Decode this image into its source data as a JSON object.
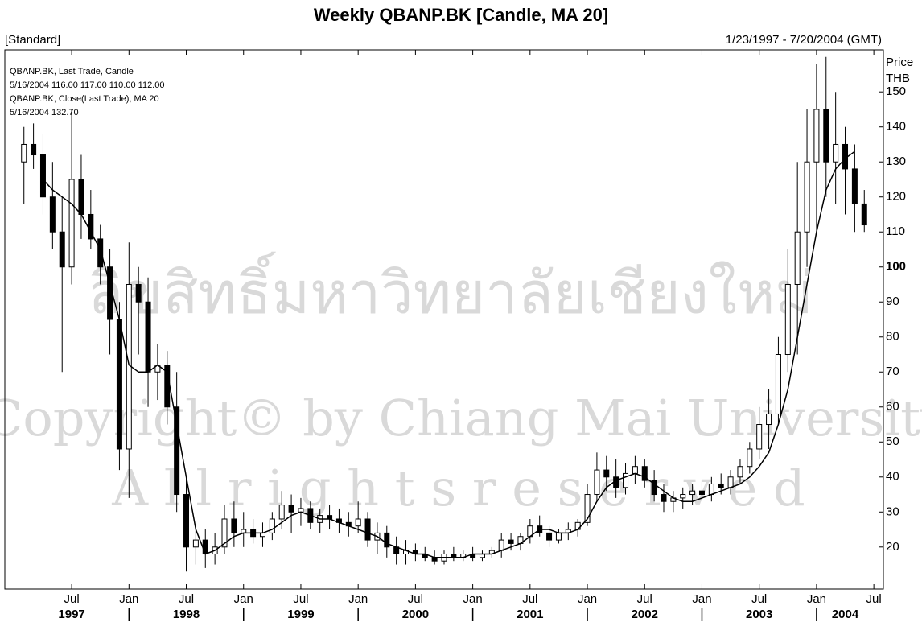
{
  "chart_data": {
    "type": "candlestick",
    "title": "Weekly QBANP.BK [Candle, MA 20]",
    "subtitle_left": "[Standard]",
    "subtitle_right": "1/23/1997 - 7/20/2004 (GMT)",
    "y_axis_label": [
      "Price",
      "THB"
    ],
    "legend_lines": [
      "QBANP.BK, Last Trade, Candle",
      "5/16/2004 116.00 117.00 110.00 112.00",
      "QBANP.BK, Close(Last Trade), MA 20",
      "5/16/2004 132.70"
    ],
    "watermark": [
      "ลิขสิทธิ์มหาวิทยาลัยเชียงใหม่",
      "Copyright© by Chiang Mai University",
      "A l l   r i g h t s   r e s e r v e d"
    ],
    "xlim": [
      "1996-12",
      "2004-08"
    ],
    "ylim": [
      8,
      162
    ],
    "yticks": [
      20,
      30,
      40,
      50,
      60,
      70,
      80,
      90,
      100,
      110,
      120,
      130,
      140,
      150
    ],
    "xticks": [
      {
        "value": "1997-07",
        "label": "Jul"
      },
      {
        "value": "1998-01",
        "label": "Jan"
      },
      {
        "value": "1998-07",
        "label": "Jul"
      },
      {
        "value": "1999-01",
        "label": "Jan"
      },
      {
        "value": "1999-07",
        "label": "Jul"
      },
      {
        "value": "2000-01",
        "label": "Jan"
      },
      {
        "value": "2000-07",
        "label": "Jul"
      },
      {
        "value": "2001-01",
        "label": "Jan"
      },
      {
        "value": "2001-07",
        "label": "Jul"
      },
      {
        "value": "2002-01",
        "label": "Jan"
      },
      {
        "value": "2002-07",
        "label": "Jul"
      },
      {
        "value": "2003-01",
        "label": "Jan"
      },
      {
        "value": "2003-07",
        "label": "Jul"
      },
      {
        "value": "2004-01",
        "label": "Jan"
      },
      {
        "value": "2004-07",
        "label": "Jul"
      }
    ],
    "year_labels": [
      {
        "value": "1997-07",
        "label": "1997"
      },
      {
        "value": "1998-07",
        "label": "1998"
      },
      {
        "value": "1999-07",
        "label": "1999"
      },
      {
        "value": "2000-07",
        "label": "2000"
      },
      {
        "value": "2001-07",
        "label": "2001"
      },
      {
        "value": "2002-07",
        "label": "2002"
      },
      {
        "value": "2003-07",
        "label": "2003"
      },
      {
        "value": "2004-04",
        "label": "2004"
      }
    ],
    "x": [
      "1997-02",
      "1997-03",
      "1997-04",
      "1997-05",
      "1997-06",
      "1997-07",
      "1997-08",
      "1997-09",
      "1997-10",
      "1997-11",
      "1997-12",
      "1998-01",
      "1998-02",
      "1998-03",
      "1998-04",
      "1998-05",
      "1998-06",
      "1998-07",
      "1998-08",
      "1998-09",
      "1998-10",
      "1998-11",
      "1998-12",
      "1999-01",
      "1999-02",
      "1999-03",
      "1999-04",
      "1999-05",
      "1999-06",
      "1999-07",
      "1999-08",
      "1999-09",
      "1999-10",
      "1999-11",
      "1999-12",
      "2000-01",
      "2000-02",
      "2000-03",
      "2000-04",
      "2000-05",
      "2000-06",
      "2000-07",
      "2000-08",
      "2000-09",
      "2000-10",
      "2000-11",
      "2000-12",
      "2001-01",
      "2001-02",
      "2001-03",
      "2001-04",
      "2001-05",
      "2001-06",
      "2001-07",
      "2001-08",
      "2001-09",
      "2001-10",
      "2001-11",
      "2001-12",
      "2002-01",
      "2002-02",
      "2002-03",
      "2002-04",
      "2002-05",
      "2002-06",
      "2002-07",
      "2002-08",
      "2002-09",
      "2002-10",
      "2002-11",
      "2002-12",
      "2003-01",
      "2003-02",
      "2003-03",
      "2003-04",
      "2003-05",
      "2003-06",
      "2003-07",
      "2003-08",
      "2003-09",
      "2003-10",
      "2003-11",
      "2003-12",
      "2004-01",
      "2004-02",
      "2004-03",
      "2004-04",
      "2004-05",
      "2004-06"
    ],
    "candle_series": {
      "name": "QBANP.BK, Last Trade, Candle",
      "color": "#000000",
      "open": [
        130,
        135,
        132,
        120,
        110,
        100,
        125,
        115,
        108,
        100,
        85,
        48,
        95,
        90,
        70,
        72,
        60,
        35,
        20,
        22,
        18,
        20,
        28,
        24,
        25,
        23,
        24,
        28,
        32,
        30,
        31,
        27,
        29,
        28,
        27,
        26,
        28,
        22,
        24,
        20,
        18,
        19,
        18,
        17,
        16,
        18,
        17,
        18,
        17,
        18,
        19,
        22,
        21,
        23,
        26,
        24,
        22,
        24,
        25,
        27,
        35,
        42,
        40,
        37,
        41,
        43,
        39,
        35,
        33,
        34,
        35,
        36,
        35,
        38,
        37,
        40,
        43,
        48,
        55,
        58,
        75,
        95,
        110,
        130,
        145,
        130,
        135,
        128,
        118
      ],
      "high": [
        140,
        141,
        138,
        130,
        120,
        145,
        132,
        122,
        112,
        105,
        90,
        107,
        100,
        97,
        78,
        76,
        70,
        40,
        26,
        25,
        24,
        32,
        33,
        30,
        28,
        27,
        30,
        36,
        35,
        34,
        33,
        31,
        32,
        31,
        30,
        33,
        30,
        27,
        26,
        23,
        22,
        21,
        20,
        19,
        19,
        20,
        19,
        20,
        19,
        20,
        24,
        24,
        24,
        28,
        29,
        26,
        25,
        27,
        28,
        38,
        47,
        46,
        45,
        44,
        46,
        45,
        42,
        38,
        36,
        37,
        38,
        39,
        40,
        41,
        42,
        45,
        50,
        60,
        65,
        80,
        105,
        130,
        145,
        158,
        160,
        150,
        140,
        135,
        122
      ],
      "low": [
        118,
        128,
        115,
        105,
        70,
        95,
        108,
        105,
        95,
        75,
        42,
        34,
        75,
        60,
        62,
        55,
        30,
        13,
        15,
        14,
        15,
        18,
        20,
        20,
        21,
        20,
        22,
        25,
        24,
        26,
        25,
        24,
        25,
        24,
        23,
        24,
        20,
        18,
        17,
        15,
        15,
        16,
        16,
        15,
        15,
        16,
        16,
        16,
        16,
        17,
        17,
        19,
        19,
        21,
        23,
        20,
        21,
        22,
        23,
        26,
        33,
        36,
        34,
        35,
        38,
        37,
        33,
        30,
        30,
        31,
        32,
        33,
        33,
        35,
        35,
        38,
        41,
        45,
        48,
        55,
        70,
        75,
        100,
        110,
        120,
        118,
        115,
        110,
        110
      ],
      "close": [
        135,
        132,
        120,
        110,
        100,
        125,
        115,
        108,
        100,
        85,
        48,
        95,
        90,
        70,
        72,
        60,
        35,
        20,
        22,
        18,
        20,
        28,
        24,
        25,
        23,
        24,
        28,
        32,
        30,
        31,
        27,
        29,
        28,
        27,
        26,
        28,
        22,
        24,
        20,
        18,
        19,
        18,
        17,
        16,
        18,
        17,
        18,
        17,
        18,
        19,
        22,
        21,
        23,
        26,
        24,
        22,
        24,
        25,
        27,
        35,
        42,
        40,
        37,
        41,
        43,
        39,
        35,
        33,
        34,
        35,
        36,
        35,
        38,
        37,
        40,
        43,
        48,
        55,
        58,
        75,
        95,
        110,
        130,
        145,
        130,
        135,
        128,
        118,
        112
      ]
    },
    "series": [
      {
        "name": "QBANP.BK, Close(Last Trade), MA 20",
        "color": "#000000",
        "values": [
          null,
          null,
          125,
          122,
          120,
          118,
          115,
          110,
          105,
          95,
          85,
          72,
          70,
          70,
          72,
          70,
          55,
          40,
          25,
          18,
          19,
          21,
          23,
          24,
          24,
          24,
          25,
          27,
          29,
          30,
          29,
          28,
          28,
          27,
          26,
          25,
          24,
          23,
          21,
          20,
          19,
          18,
          18,
          17,
          17,
          17,
          17,
          18,
          18,
          18,
          19,
          20,
          21,
          23,
          25,
          25,
          24,
          24,
          25,
          28,
          33,
          37,
          39,
          40,
          41,
          40,
          38,
          36,
          34,
          33,
          33,
          34,
          35,
          36,
          37,
          38,
          40,
          43,
          47,
          55,
          65,
          80,
          95,
          110,
          122,
          128,
          131,
          133,
          null
        ]
      }
    ]
  }
}
